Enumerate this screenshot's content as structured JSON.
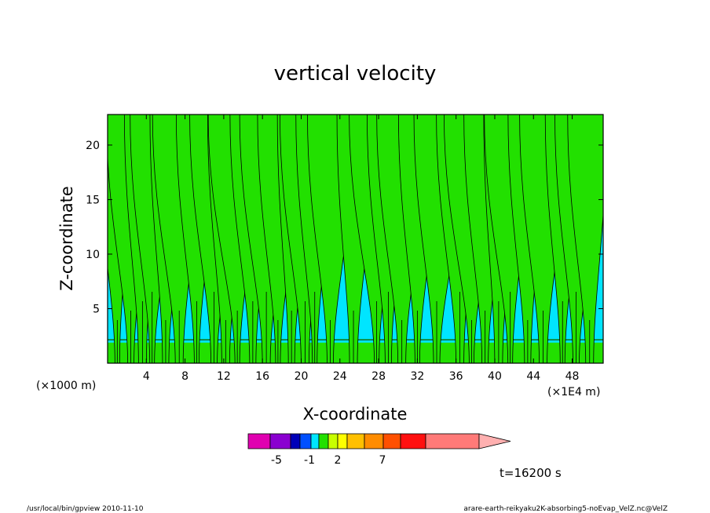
{
  "chart_data": {
    "type": "heatmap",
    "title": "vertical velocity",
    "xlabel": "X-coordinate",
    "ylabel": "Z-coordinate",
    "x_unit": "(×1E4 m)",
    "y_unit": "(×1000 m)",
    "xlim": [
      0,
      51.2
    ],
    "ylim": [
      0,
      22.8
    ],
    "x_ticks": [
      "4",
      "8",
      "12",
      "16",
      "20",
      "24",
      "28",
      "32",
      "36",
      "40",
      "44",
      "48"
    ],
    "y_ticks": [
      "5",
      "10",
      "15",
      "20"
    ],
    "x_tick_values": [
      4,
      8,
      12,
      16,
      20,
      24,
      28,
      32,
      36,
      40,
      44,
      48
    ],
    "y_tick_values": [
      5,
      10,
      15,
      20
    ],
    "colors": {
      "negative_weak": "#00e5ff",
      "positive_weak": "#22e000",
      "contour": "#000000",
      "frame": "#000000"
    },
    "updraft_columns_x": [
      1.0,
      2.4,
      3.6,
      4.6,
      6.0,
      7.4,
      9.2,
      11.0,
      12.2,
      13.4,
      15.0,
      16.4,
      17.6,
      19.0,
      20.4,
      21.4,
      23.0,
      25.4,
      27.8,
      29.0,
      30.4,
      32.0,
      34.0,
      36.4,
      37.6,
      39.0,
      40.4,
      41.6,
      43.4,
      45.0,
      47.0,
      48.4,
      49.8
    ],
    "colorbar": {
      "colors": [
        "#e000b0",
        "#8a00d0",
        "#0000b8",
        "#0050ff",
        "#00e5ff",
        "#22e000",
        "#c8ff00",
        "#ffff00",
        "#ffc000",
        "#ff8c00",
        "#ff5000",
        "#ff1010",
        "#ff7a78",
        "#ffb0b0"
      ],
      "labels": [
        "-5",
        "-1",
        "2",
        "7"
      ],
      "label_values": [
        -5,
        -1,
        2,
        7
      ]
    },
    "annotation_time": "t=16200 s"
  },
  "footer": {
    "left": "/usr/local/bin/gpview  2010-11-10",
    "right": "arare-earth-reikyaku2K-absorbing5-noEvap_VelZ.nc@VelZ"
  }
}
